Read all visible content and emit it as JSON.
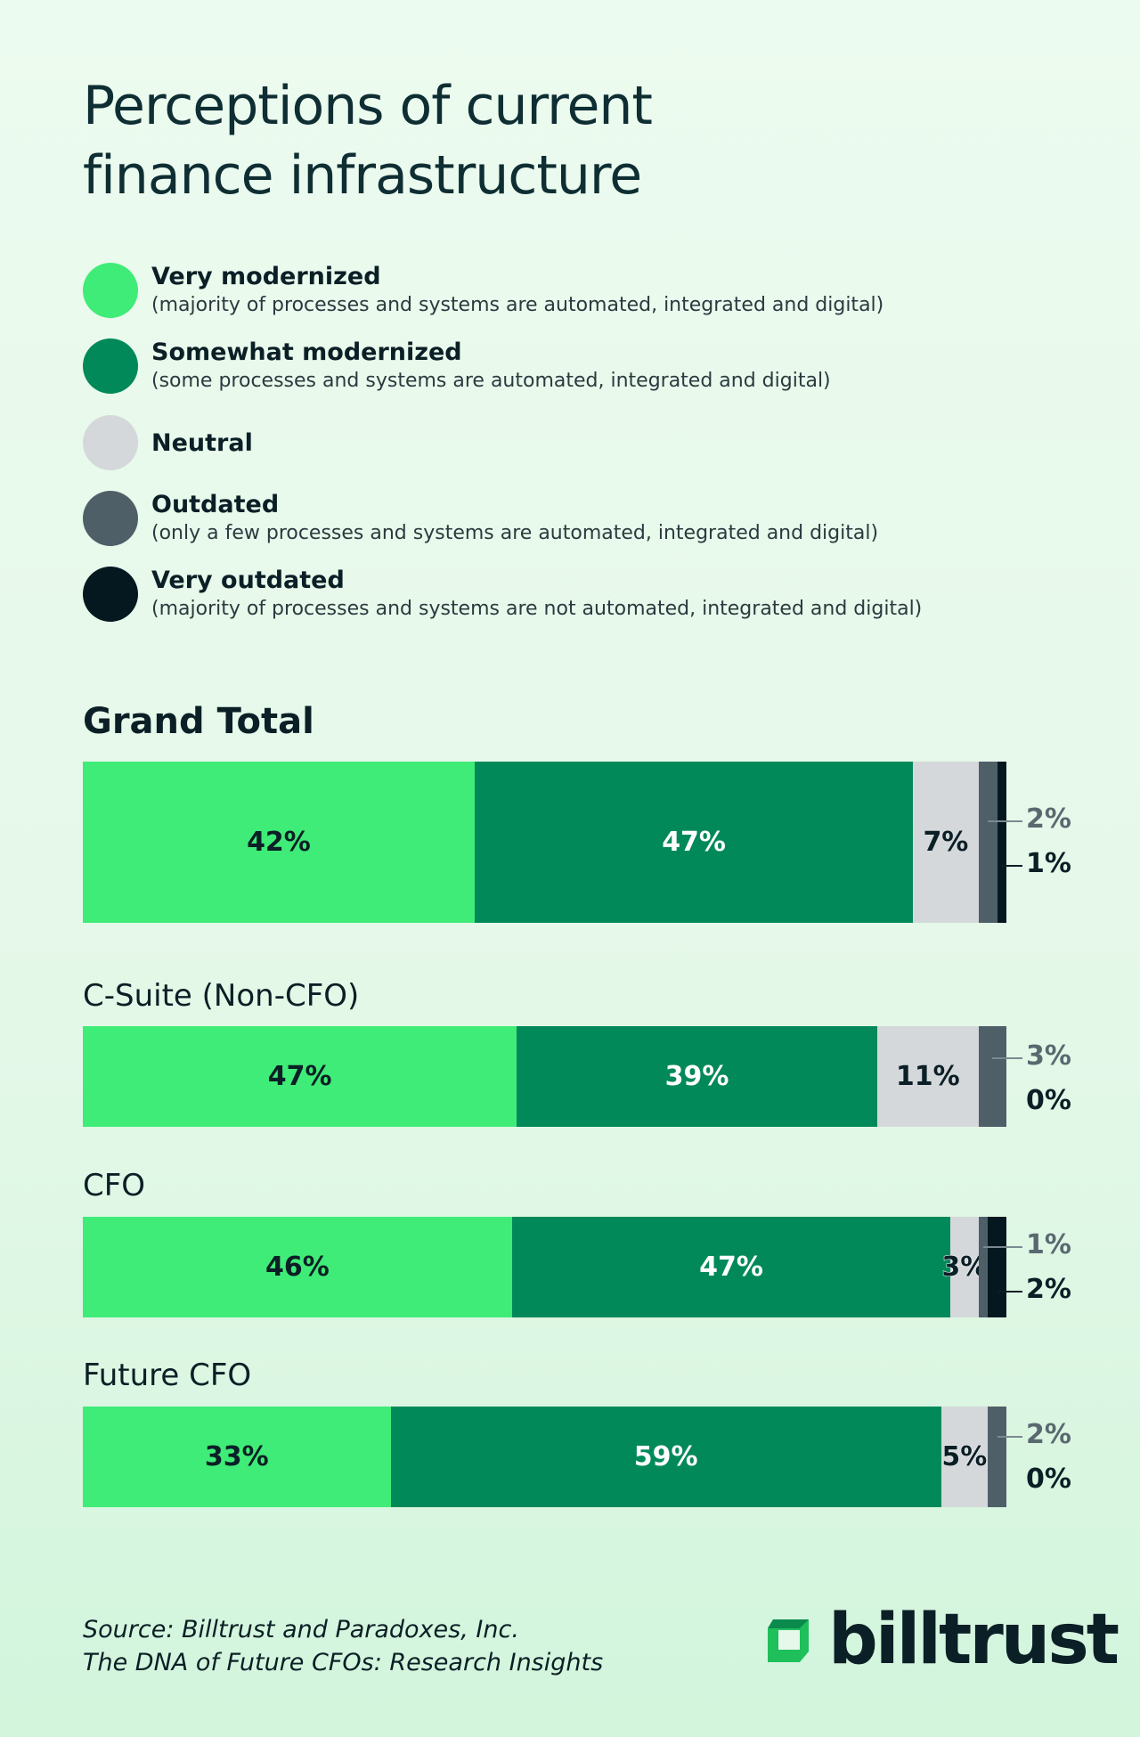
{
  "title_line1": "Perceptions of current",
  "title_line2": "finance infrastructure",
  "legend": [
    {
      "name": "Very modernized",
      "desc": "(majority of processes and systems are automated, integrated and digital)",
      "color": "#3fec77"
    },
    {
      "name": "Somewhat modernized",
      "desc": "(some processes and systems are automated, integrated and digital)",
      "color": "#02895a"
    },
    {
      "name": "Neutral",
      "desc": "",
      "color": "#d5d8da"
    },
    {
      "name": "Outdated",
      "desc": "(only a few processes and systems are automated, integrated and digital)",
      "color": "#4f5f68"
    },
    {
      "name": "Very outdated",
      "desc": "(majority of processes and systems are not automated, integrated and digital)",
      "color": "#051820"
    }
  ],
  "chart_data": {
    "type": "bar",
    "orientation": "horizontal-stacked-100",
    "series_names": [
      "Very modernized",
      "Somewhat modernized",
      "Neutral",
      "Outdated",
      "Very outdated"
    ],
    "groups": [
      {
        "name": "Grand Total",
        "values": [
          42,
          47,
          7,
          2,
          1
        ],
        "labels": [
          "42%",
          "47%",
          "7%",
          "2%",
          "1%"
        ]
      },
      {
        "name": "C-Suite (Non-CFO)",
        "values": [
          47,
          39,
          11,
          3,
          0
        ],
        "labels": [
          "47%",
          "39%",
          "11%",
          "3%",
          "0%"
        ]
      },
      {
        "name": "CFO",
        "values": [
          46,
          47,
          3,
          1,
          2
        ],
        "labels": [
          "46%",
          "47%",
          "3%",
          "1%",
          "2%"
        ]
      },
      {
        "name": "Future CFO",
        "values": [
          33,
          59,
          5,
          2,
          0
        ],
        "labels": [
          "33%",
          "59%",
          "5%",
          "2%",
          "0%"
        ]
      }
    ]
  },
  "source_line1": "Source: Billtrust and Paradoxes, Inc.",
  "source_line2": "The DNA of Future CFOs: Research Insights",
  "brand": "billtrust"
}
